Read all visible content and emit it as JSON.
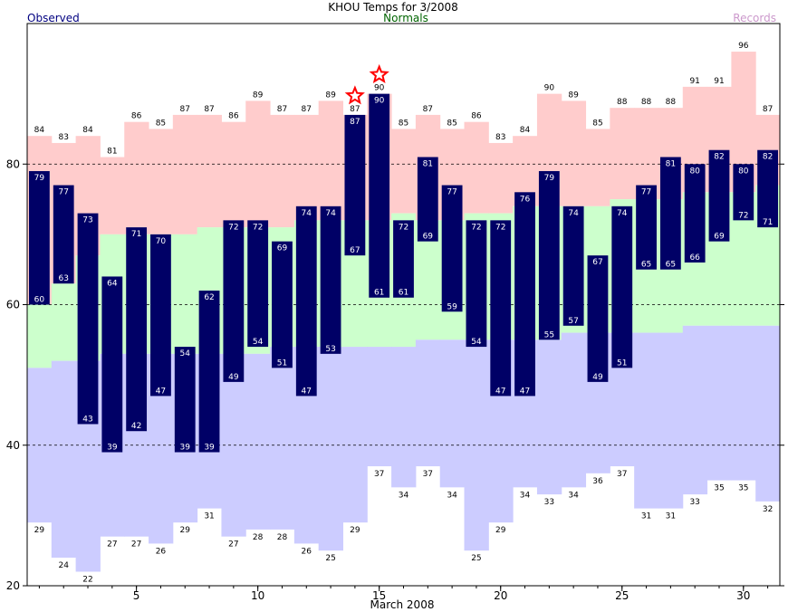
{
  "chart_data": {
    "type": "bar",
    "title": "KHOU Temps for 3/2008",
    "xlabel": "March 2008",
    "ylabel": "",
    "legend": {
      "observed": "Observed",
      "normals": "Normals",
      "records": "Records"
    },
    "ylim": [
      20,
      100
    ],
    "yticks": [
      20,
      40,
      60,
      80
    ],
    "gridlines_at": [
      40,
      60,
      80
    ],
    "xlim": [
      1,
      32
    ],
    "xticks": [
      5,
      10,
      15,
      20,
      25,
      30
    ],
    "days": [
      1,
      2,
      3,
      4,
      5,
      6,
      7,
      8,
      9,
      10,
      11,
      12,
      13,
      14,
      15,
      16,
      17,
      18,
      19,
      20,
      21,
      22,
      23,
      24,
      25,
      26,
      27,
      28,
      29,
      30,
      31
    ],
    "record_high": [
      84,
      83,
      84,
      81,
      86,
      85,
      87,
      87,
      86,
      89,
      87,
      87,
      89,
      87,
      90,
      85,
      87,
      85,
      86,
      83,
      84,
      90,
      89,
      85,
      88,
      88,
      88,
      91,
      91,
      96,
      87
    ],
    "record_low": [
      29,
      24,
      22,
      27,
      27,
      26,
      29,
      31,
      27,
      28,
      28,
      26,
      25,
      29,
      37,
      34,
      37,
      34,
      25,
      29,
      34,
      33,
      34,
      36,
      37,
      31,
      31,
      33,
      35,
      35,
      32
    ],
    "normal_high": [
      60,
      63,
      67,
      70,
      70,
      70,
      70,
      71,
      71,
      71,
      71,
      72,
      72,
      72,
      72,
      73,
      72,
      72,
      73,
      73,
      74,
      74,
      74,
      74,
      75,
      75,
      75,
      76,
      76,
      76,
      77
    ],
    "normal_low": [
      51,
      52,
      52,
      53,
      53,
      53,
      53,
      53,
      53,
      53,
      54,
      54,
      54,
      54,
      54,
      54,
      55,
      55,
      55,
      55,
      55,
      55,
      56,
      56,
      56,
      56,
      56,
      57,
      57,
      57,
      57
    ],
    "observed_high": [
      79,
      77,
      73,
      64,
      71,
      70,
      54,
      62,
      72,
      72,
      69,
      74,
      74,
      87,
      90,
      72,
      81,
      77,
      72,
      72,
      76,
      79,
      74,
      67,
      74,
      77,
      81,
      80,
      82,
      80,
      82
    ],
    "observed_low": [
      60,
      63,
      43,
      39,
      42,
      47,
      39,
      39,
      49,
      54,
      51,
      47,
      53,
      67,
      61,
      61,
      69,
      59,
      54,
      47,
      47,
      55,
      57,
      49,
      51,
      65,
      65,
      66,
      69,
      72,
      71
    ],
    "record_high_set_days": [
      14,
      15
    ],
    "colors": {
      "record": "#ffcccc",
      "normal": "#ccffcc",
      "record_low_band": "#ccccff",
      "observed": "#000066",
      "observed_legend": "#000080",
      "normals_legend": "#006400",
      "records_legend": "#cc99cc",
      "star": "#ff0000"
    }
  }
}
